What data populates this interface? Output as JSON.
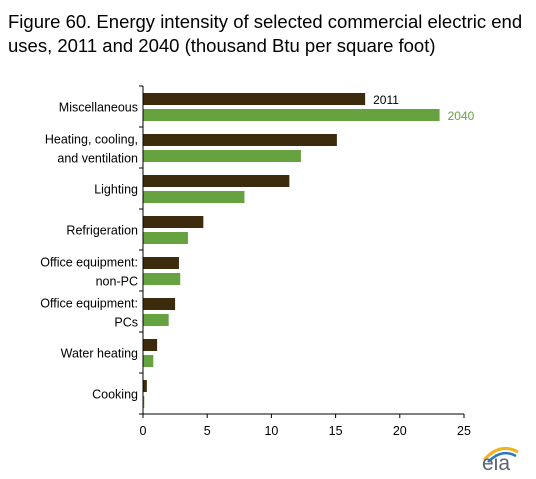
{
  "title": "Figure 60. Energy intensity of selected commercial electric end uses, 2011 and 2040 (thousand Btu per square foot)",
  "logo_text": "eia",
  "colors": {
    "series_2011": "#3d2b0e",
    "series_2040": "#66a23f",
    "axis": "#000000",
    "logo": "#5b6570"
  },
  "chart_data": {
    "type": "bar",
    "orientation": "horizontal",
    "title": "Figure 60. Energy intensity of selected commercial electric end uses, 2011 and 2040 (thousand Btu per square foot)",
    "categories": [
      [
        "Miscellaneous"
      ],
      [
        "Heating, cooling,",
        "and ventilation"
      ],
      [
        "Lighting"
      ],
      [
        "Refrigeration"
      ],
      [
        "Office equipment:",
        "non-PC"
      ],
      [
        "Office equipment:",
        "PCs"
      ],
      [
        "Water heating"
      ],
      [
        "Cooking"
      ]
    ],
    "series": [
      {
        "name": "2011",
        "values": [
          17.3,
          15.1,
          11.4,
          4.7,
          2.8,
          2.5,
          1.1,
          0.3
        ]
      },
      {
        "name": "2040",
        "values": [
          23.1,
          12.3,
          7.9,
          3.5,
          2.9,
          2.0,
          0.8,
          0.1
        ]
      }
    ],
    "xlim": [
      0,
      25
    ],
    "xticks": [
      0,
      5,
      10,
      15,
      20,
      25
    ],
    "grid": false,
    "legend": "labels beside first category bars"
  }
}
